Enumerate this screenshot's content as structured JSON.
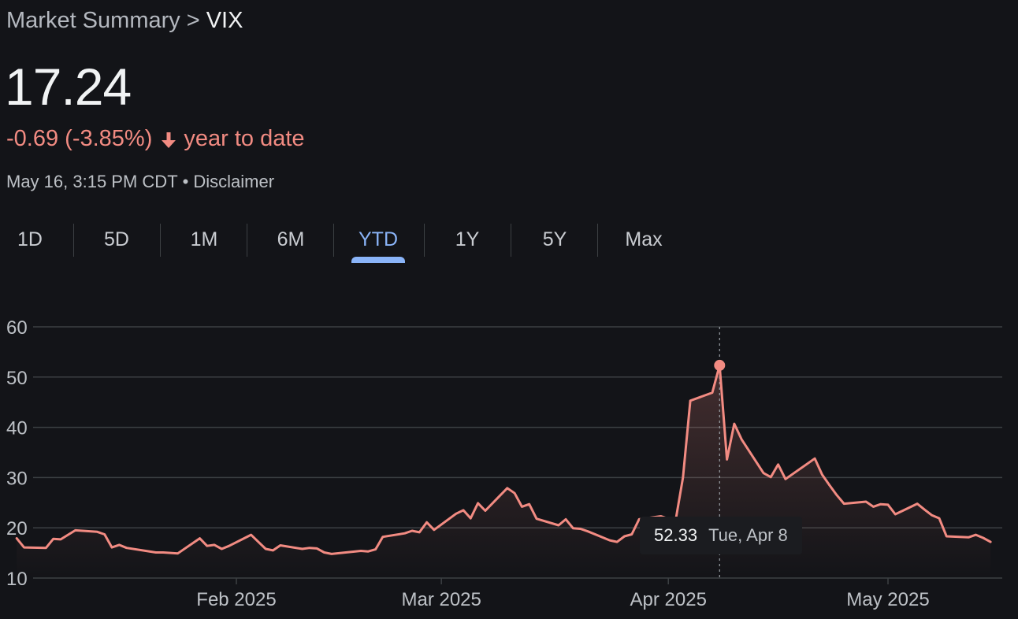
{
  "breadcrumb": {
    "parent": "Market Summary",
    "separator": ">",
    "current": "VIX"
  },
  "quote": {
    "price": "17.24",
    "change": "-0.69 (-3.85%)",
    "change_period": "year to date",
    "change_direction": "down",
    "timestamp": "May 16, 3:15 PM CDT",
    "separator": "•",
    "disclaimer": "Disclaimer"
  },
  "tabs": [
    {
      "label": "1D"
    },
    {
      "label": "5D"
    },
    {
      "label": "1M"
    },
    {
      "label": "6M"
    },
    {
      "label": "YTD",
      "active": true
    },
    {
      "label": "1Y"
    },
    {
      "label": "5Y"
    },
    {
      "label": "Max"
    }
  ],
  "tooltip": {
    "value": "52.33",
    "date": "Tue, Apr 8"
  },
  "colors": {
    "background": "#131418",
    "line": "#f28b82",
    "active_tab": "#8ab4f8",
    "grid": "#3c4043",
    "negative": "#f28b82"
  },
  "chart_data": {
    "type": "line",
    "title": "",
    "xlabel": "",
    "ylabel": "",
    "ylim": [
      10,
      60
    ],
    "yticks": [
      "60",
      "50",
      "40",
      "30",
      "20",
      "10"
    ],
    "xticks": [
      {
        "label": "Feb 2025",
        "date": "2025-02-01"
      },
      {
        "label": "Mar 2025",
        "date": "2025-03-01"
      },
      {
        "label": "Apr 2025",
        "date": "2025-04-01"
      },
      {
        "label": "May 2025",
        "date": "2025-05-01"
      }
    ],
    "grid": true,
    "highlight": {
      "date": "2025-04-08",
      "value": 52.33
    },
    "series": [
      {
        "values": [
          [
            "2025-01-02",
            17.9
          ],
          [
            "2025-01-03",
            16.1
          ],
          [
            "2025-01-06",
            16.0
          ],
          [
            "2025-01-07",
            17.8
          ],
          [
            "2025-01-08",
            17.7
          ],
          [
            "2025-01-10",
            19.5
          ],
          [
            "2025-01-13",
            19.2
          ],
          [
            "2025-01-14",
            18.7
          ],
          [
            "2025-01-15",
            16.1
          ],
          [
            "2025-01-16",
            16.6
          ],
          [
            "2025-01-17",
            16.0
          ],
          [
            "2025-01-21",
            15.1
          ],
          [
            "2025-01-22",
            15.1
          ],
          [
            "2025-01-23",
            15.0
          ],
          [
            "2025-01-24",
            14.9
          ],
          [
            "2025-01-27",
            17.9
          ],
          [
            "2025-01-28",
            16.4
          ],
          [
            "2025-01-29",
            16.6
          ],
          [
            "2025-01-30",
            15.8
          ],
          [
            "2025-01-31",
            16.4
          ],
          [
            "2025-02-03",
            18.6
          ],
          [
            "2025-02-04",
            17.2
          ],
          [
            "2025-02-05",
            15.8
          ],
          [
            "2025-02-06",
            15.5
          ],
          [
            "2025-02-07",
            16.5
          ],
          [
            "2025-02-10",
            15.8
          ],
          [
            "2025-02-11",
            16.0
          ],
          [
            "2025-02-12",
            15.9
          ],
          [
            "2025-02-13",
            15.1
          ],
          [
            "2025-02-14",
            14.8
          ],
          [
            "2025-02-18",
            15.4
          ],
          [
            "2025-02-19",
            15.3
          ],
          [
            "2025-02-20",
            15.7
          ],
          [
            "2025-02-21",
            18.2
          ],
          [
            "2025-02-24",
            18.9
          ],
          [
            "2025-02-25",
            19.4
          ],
          [
            "2025-02-26",
            19.1
          ],
          [
            "2025-02-27",
            21.1
          ],
          [
            "2025-02-28",
            19.6
          ],
          [
            "2025-03-03",
            22.8
          ],
          [
            "2025-03-04",
            23.5
          ],
          [
            "2025-03-05",
            21.9
          ],
          [
            "2025-03-06",
            24.9
          ],
          [
            "2025-03-07",
            23.4
          ],
          [
            "2025-03-10",
            27.9
          ],
          [
            "2025-03-11",
            26.9
          ],
          [
            "2025-03-12",
            24.2
          ],
          [
            "2025-03-13",
            24.7
          ],
          [
            "2025-03-14",
            21.8
          ],
          [
            "2025-03-17",
            20.5
          ],
          [
            "2025-03-18",
            21.7
          ],
          [
            "2025-03-19",
            19.9
          ],
          [
            "2025-03-20",
            19.8
          ],
          [
            "2025-03-21",
            19.3
          ],
          [
            "2025-03-24",
            17.5
          ],
          [
            "2025-03-25",
            17.2
          ],
          [
            "2025-03-26",
            18.3
          ],
          [
            "2025-03-27",
            18.7
          ],
          [
            "2025-03-28",
            21.7
          ],
          [
            "2025-03-31",
            22.3
          ],
          [
            "2025-04-01",
            21.8
          ],
          [
            "2025-04-02",
            21.5
          ],
          [
            "2025-04-03",
            30.0
          ],
          [
            "2025-04-04",
            45.3
          ],
          [
            "2025-04-07",
            46.9
          ],
          [
            "2025-04-08",
            52.33
          ],
          [
            "2025-04-09",
            33.6
          ],
          [
            "2025-04-10",
            40.7
          ],
          [
            "2025-04-11",
            37.6
          ],
          [
            "2025-04-14",
            30.9
          ],
          [
            "2025-04-15",
            30.1
          ],
          [
            "2025-04-16",
            32.6
          ],
          [
            "2025-04-17",
            29.7
          ],
          [
            "2025-04-21",
            33.8
          ],
          [
            "2025-04-22",
            30.6
          ],
          [
            "2025-04-23",
            28.5
          ],
          [
            "2025-04-24",
            26.5
          ],
          [
            "2025-04-25",
            24.8
          ],
          [
            "2025-04-28",
            25.2
          ],
          [
            "2025-04-29",
            24.2
          ],
          [
            "2025-04-30",
            24.7
          ],
          [
            "2025-05-01",
            24.6
          ],
          [
            "2025-05-02",
            22.7
          ],
          [
            "2025-05-05",
            24.8
          ],
          [
            "2025-05-06",
            23.6
          ],
          [
            "2025-05-07",
            22.5
          ],
          [
            "2025-05-08",
            21.9
          ],
          [
            "2025-05-09",
            18.3
          ],
          [
            "2025-05-12",
            18.1
          ],
          [
            "2025-05-13",
            18.6
          ],
          [
            "2025-05-14",
            18.0
          ],
          [
            "2025-05-15",
            17.2
          ]
        ]
      }
    ]
  }
}
